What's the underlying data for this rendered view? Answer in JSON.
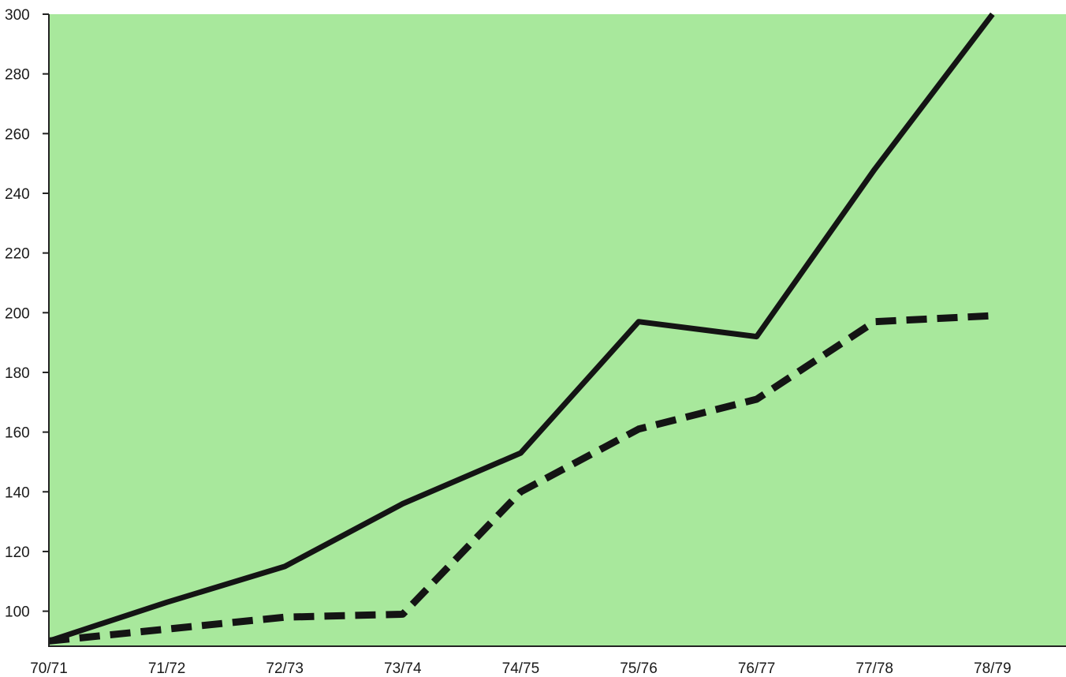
{
  "chart_data": {
    "type": "line",
    "categories": [
      "70/71",
      "71/72",
      "72/73",
      "73/74",
      "74/75",
      "75/76",
      "76/77",
      "77/78",
      "78/79"
    ],
    "yticks": [
      "100",
      "120",
      "140",
      "160",
      "180",
      "200",
      "220",
      "240",
      "260",
      "280",
      "300"
    ],
    "ylim": [
      88,
      300
    ],
    "grid": false,
    "legend": "none",
    "colors": {
      "plot_background": "#a8e89c",
      "line": "#141414",
      "axis": "#222222"
    },
    "series": [
      {
        "style": "solid",
        "values": [
          90,
          103,
          115,
          136,
          153,
          197,
          192,
          248,
          300
        ]
      },
      {
        "style": "dashed",
        "values": [
          90,
          94,
          98,
          99,
          140,
          161,
          171,
          197,
          199
        ]
      }
    ]
  }
}
